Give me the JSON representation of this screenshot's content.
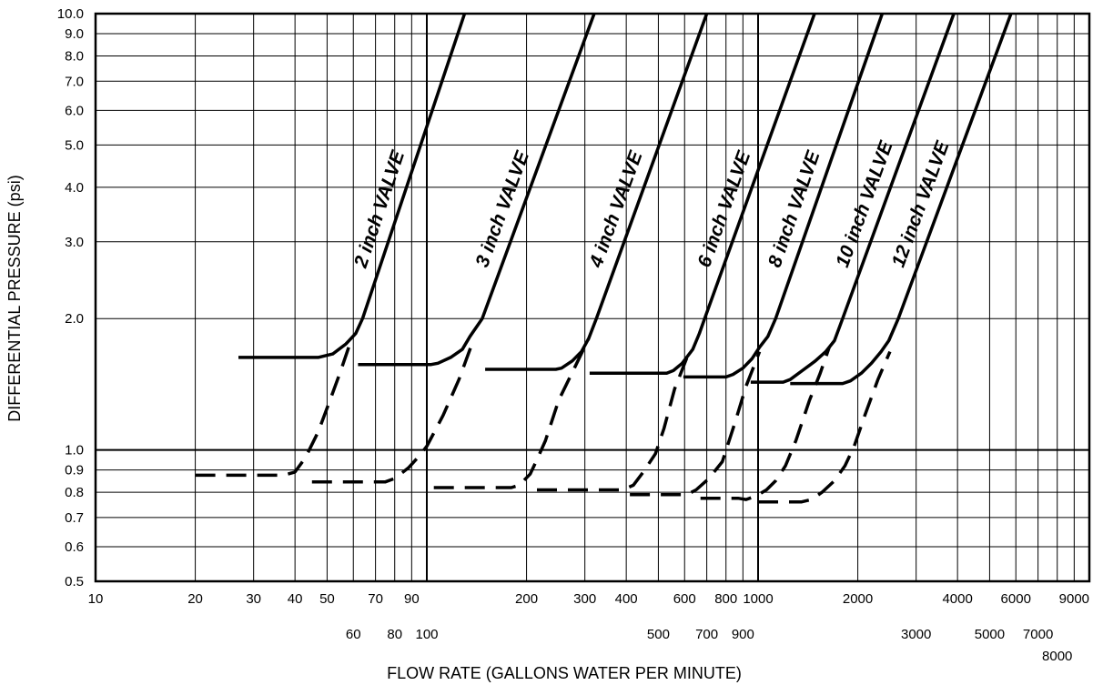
{
  "chart_data": {
    "type": "line",
    "xlabel": "FLOW RATE (GALLONS WATER PER MINUTE)",
    "ylabel": "DIFFERENTIAL PRESSURE (psi)",
    "xscale": "log",
    "yscale": "log",
    "xlim": [
      10,
      10000
    ],
    "ylim": [
      0.5,
      10.0
    ],
    "grid": true,
    "legend": "none",
    "x_ticks_row1": [
      "10",
      "20",
      "30",
      "40",
      "50",
      "70",
      "90",
      "200",
      "300",
      "400",
      "600",
      "800",
      "1000",
      "2000",
      "4000",
      "6000",
      "9000"
    ],
    "x_ticks_row2": [
      "60",
      "80",
      "100",
      "500",
      "700",
      "900",
      "3000",
      "5000",
      "7000"
    ],
    "x_ticks_row3": [
      "8000"
    ],
    "y_ticks": [
      "10.0",
      "9.0",
      "8.0",
      "7.0",
      "6.0",
      "5.0",
      "4.0",
      "3.0",
      "2.0",
      "1.0",
      "0.9",
      "0.8",
      "0.7",
      "0.6",
      "0.5"
    ],
    "line_style_note": "solid = upper curve, dashed = lower curve",
    "series": [
      {
        "name": "2 inch VALVE",
        "solid": [
          [
            27,
            1.63
          ],
          [
            47,
            1.63
          ],
          [
            52,
            1.66
          ],
          [
            57,
            1.75
          ],
          [
            61,
            1.85
          ],
          [
            64,
            2.0
          ],
          [
            130,
            10.0
          ]
        ],
        "dashed": [
          [
            20,
            0.875
          ],
          [
            37,
            0.875
          ],
          [
            40,
            0.89
          ],
          [
            43,
            0.96
          ],
          [
            47,
            1.1
          ],
          [
            51,
            1.3
          ],
          [
            55,
            1.52
          ],
          [
            59,
            1.78
          ]
        ]
      },
      {
        "name": "3 inch VALVE",
        "solid": [
          [
            62,
            1.57
          ],
          [
            103,
            1.57
          ],
          [
            108,
            1.58
          ],
          [
            118,
            1.63
          ],
          [
            128,
            1.7
          ],
          [
            135,
            1.82
          ],
          [
            147,
            2.0
          ],
          [
            320,
            10.0
          ]
        ],
        "dashed": [
          [
            45,
            0.845
          ],
          [
            75,
            0.845
          ],
          [
            80,
            0.86
          ],
          [
            88,
            0.91
          ],
          [
            95,
            0.97
          ],
          [
            100,
            1.02
          ],
          [
            112,
            1.2
          ],
          [
            125,
            1.45
          ],
          [
            138,
            1.78
          ]
        ]
      },
      {
        "name": "4 inch VALVE",
        "solid": [
          [
            150,
            1.53
          ],
          [
            245,
            1.53
          ],
          [
            255,
            1.54
          ],
          [
            275,
            1.6
          ],
          [
            293,
            1.68
          ],
          [
            308,
            1.8
          ],
          [
            325,
            2.0
          ],
          [
            700,
            10.0
          ]
        ],
        "dashed": [
          [
            105,
            0.82
          ],
          [
            180,
            0.82
          ],
          [
            190,
            0.83
          ],
          [
            205,
            0.88
          ],
          [
            215,
            0.95
          ],
          [
            228,
            1.05
          ],
          [
            250,
            1.3
          ],
          [
            280,
            1.55
          ],
          [
            308,
            1.8
          ]
        ]
      },
      {
        "name": "6 inch VALVE",
        "solid": [
          [
            310,
            1.5
          ],
          [
            530,
            1.5
          ],
          [
            555,
            1.52
          ],
          [
            590,
            1.58
          ],
          [
            635,
            1.7
          ],
          [
            665,
            1.85
          ],
          [
            690,
            2.0
          ],
          [
            1480,
            10.0
          ]
        ],
        "dashed": [
          [
            215,
            0.81
          ],
          [
            390,
            0.81
          ],
          [
            420,
            0.83
          ],
          [
            450,
            0.89
          ],
          [
            490,
            0.98
          ],
          [
            520,
            1.12
          ],
          [
            560,
            1.38
          ],
          [
            620,
            1.68
          ]
        ]
      },
      {
        "name": "8 inch VALVE",
        "solid": [
          [
            595,
            1.47
          ],
          [
            800,
            1.47
          ],
          [
            840,
            1.49
          ],
          [
            900,
            1.54
          ],
          [
            960,
            1.62
          ],
          [
            1010,
            1.72
          ],
          [
            1070,
            1.82
          ],
          [
            1130,
            2.0
          ],
          [
            2370,
            10.0
          ]
        ],
        "dashed": [
          [
            410,
            0.79
          ],
          [
            610,
            0.79
          ],
          [
            650,
            0.81
          ],
          [
            710,
            0.86
          ],
          [
            780,
            0.94
          ],
          [
            850,
            1.15
          ],
          [
            920,
            1.4
          ],
          [
            1010,
            1.68
          ]
        ]
      },
      {
        "name": "10 inch VALVE",
        "solid": [
          [
            950,
            1.43
          ],
          [
            1190,
            1.43
          ],
          [
            1250,
            1.45
          ],
          [
            1360,
            1.52
          ],
          [
            1490,
            1.6
          ],
          [
            1600,
            1.68
          ],
          [
            1700,
            1.78
          ],
          [
            1800,
            2.0
          ],
          [
            3900,
            10.0
          ]
        ],
        "dashed": [
          [
            670,
            0.775
          ],
          [
            870,
            0.775
          ],
          [
            920,
            0.77
          ],
          [
            990,
            0.785
          ],
          [
            1060,
            0.81
          ],
          [
            1130,
            0.85
          ],
          [
            1210,
            0.92
          ],
          [
            1300,
            1.05
          ],
          [
            1430,
            1.3
          ],
          [
            1540,
            1.5
          ],
          [
            1640,
            1.72
          ]
        ]
      },
      {
        "name": "12 inch VALVE",
        "solid": [
          [
            1250,
            1.42
          ],
          [
            1800,
            1.42
          ],
          [
            1900,
            1.44
          ],
          [
            2050,
            1.5
          ],
          [
            2200,
            1.58
          ],
          [
            2350,
            1.68
          ],
          [
            2480,
            1.78
          ],
          [
            2650,
            2.0
          ],
          [
            5800,
            10.0
          ]
        ],
        "dashed": [
          [
            1000,
            0.76
          ],
          [
            1350,
            0.76
          ],
          [
            1450,
            0.77
          ],
          [
            1560,
            0.8
          ],
          [
            1700,
            0.85
          ],
          [
            1830,
            0.92
          ],
          [
            1950,
            1.02
          ],
          [
            2100,
            1.2
          ],
          [
            2300,
            1.45
          ],
          [
            2500,
            1.68
          ]
        ]
      }
    ]
  }
}
